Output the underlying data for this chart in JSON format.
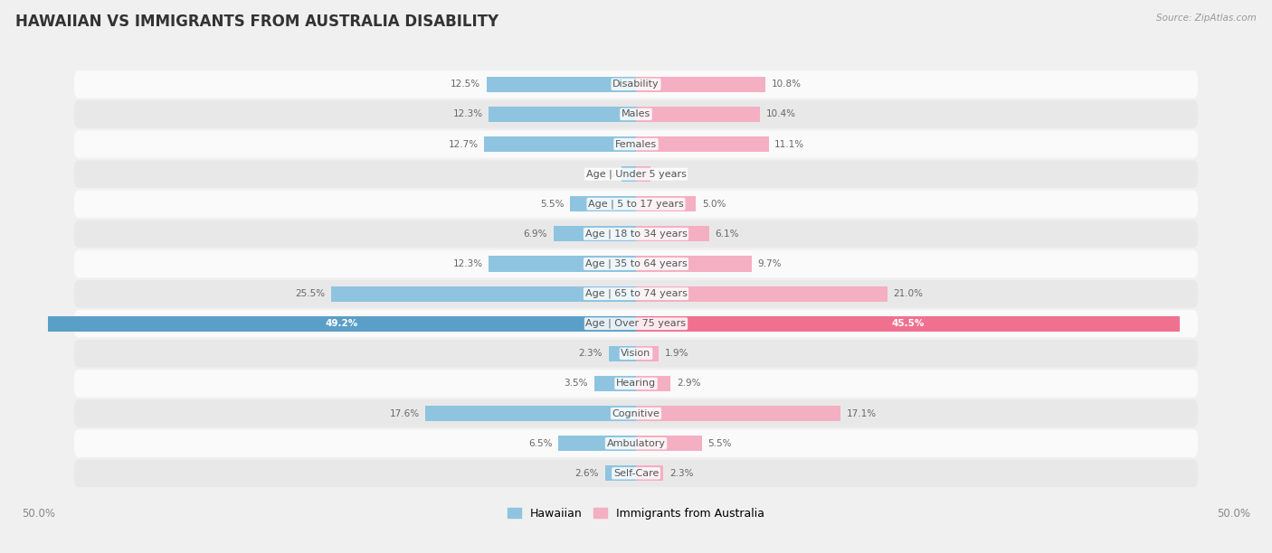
{
  "title": "HAWAIIAN VS IMMIGRANTS FROM AUSTRALIA DISABILITY",
  "source": "Source: ZipAtlas.com",
  "categories": [
    "Disability",
    "Males",
    "Females",
    "Age | Under 5 years",
    "Age | 5 to 17 years",
    "Age | 18 to 34 years",
    "Age | 35 to 64 years",
    "Age | 65 to 74 years",
    "Age | Over 75 years",
    "Vision",
    "Hearing",
    "Cognitive",
    "Ambulatory",
    "Self-Care"
  ],
  "hawaiian_values": [
    12.5,
    12.3,
    12.7,
    1.2,
    5.5,
    6.9,
    12.3,
    25.5,
    49.2,
    2.3,
    3.5,
    17.6,
    6.5,
    2.6
  ],
  "australia_values": [
    10.8,
    10.4,
    11.1,
    1.2,
    5.0,
    6.1,
    9.7,
    21.0,
    45.5,
    1.9,
    2.9,
    17.1,
    5.5,
    2.3
  ],
  "hawaiian_color": "#8fc4e0",
  "australia_color": "#f4afc3",
  "hawaiian_color_special": "#5a9fc8",
  "australia_color_special": "#f07090",
  "hawaiian_label": "Hawaiian",
  "australia_label": "Immigrants from Australia",
  "axis_max": 50.0,
  "bg_color": "#f0f0f0",
  "row_bg_light": "#fafafa",
  "row_bg_dark": "#e8e8e8",
  "title_fontsize": 12,
  "label_fontsize": 8,
  "value_fontsize": 7.5,
  "legend_fontsize": 9
}
